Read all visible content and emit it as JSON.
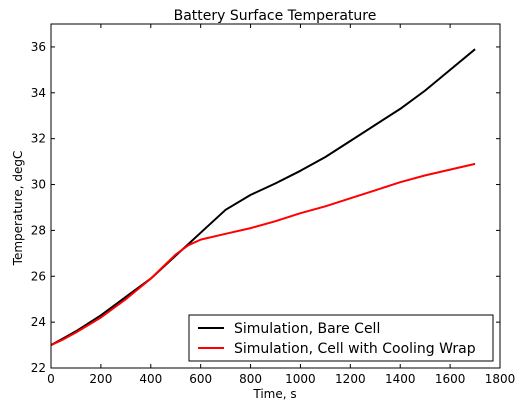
{
  "chart_data": {
    "type": "line",
    "title": "Battery Surface Temperature",
    "xlabel": "Time, s",
    "ylabel": "Temperature, degC",
    "xlim": [
      0,
      1800
    ],
    "ylim": [
      22,
      37
    ],
    "xticks": [
      0,
      200,
      400,
      600,
      800,
      1000,
      1200,
      1400,
      1600,
      1800
    ],
    "yticks": [
      22,
      24,
      26,
      28,
      30,
      32,
      34,
      36
    ],
    "grid": false,
    "legend_position": "lower-right",
    "series": [
      {
        "name": "Simulation, Bare Cell",
        "color": "#000000",
        "x": [
          0,
          50,
          100,
          200,
          300,
          400,
          500,
          550,
          600,
          700,
          800,
          900,
          1000,
          1100,
          1200,
          1300,
          1400,
          1500,
          1600,
          1700
        ],
        "y": [
          23.0,
          23.3,
          23.6,
          24.3,
          25.1,
          25.9,
          26.9,
          27.4,
          27.9,
          28.9,
          29.55,
          30.05,
          30.6,
          31.2,
          31.9,
          32.6,
          33.3,
          34.1,
          35.0,
          35.9
        ]
      },
      {
        "name": "Simulation, Cell with Cooling Wrap",
        "color": "#ff0000",
        "x": [
          0,
          50,
          100,
          200,
          300,
          400,
          500,
          550,
          600,
          700,
          800,
          900,
          1000,
          1100,
          1200,
          1300,
          1400,
          1500,
          1600,
          1700
        ],
        "y": [
          23.0,
          23.25,
          23.55,
          24.2,
          25.0,
          25.9,
          26.95,
          27.35,
          27.6,
          27.85,
          28.1,
          28.4,
          28.75,
          29.05,
          29.4,
          29.75,
          30.1,
          30.4,
          30.65,
          30.9
        ]
      }
    ]
  }
}
